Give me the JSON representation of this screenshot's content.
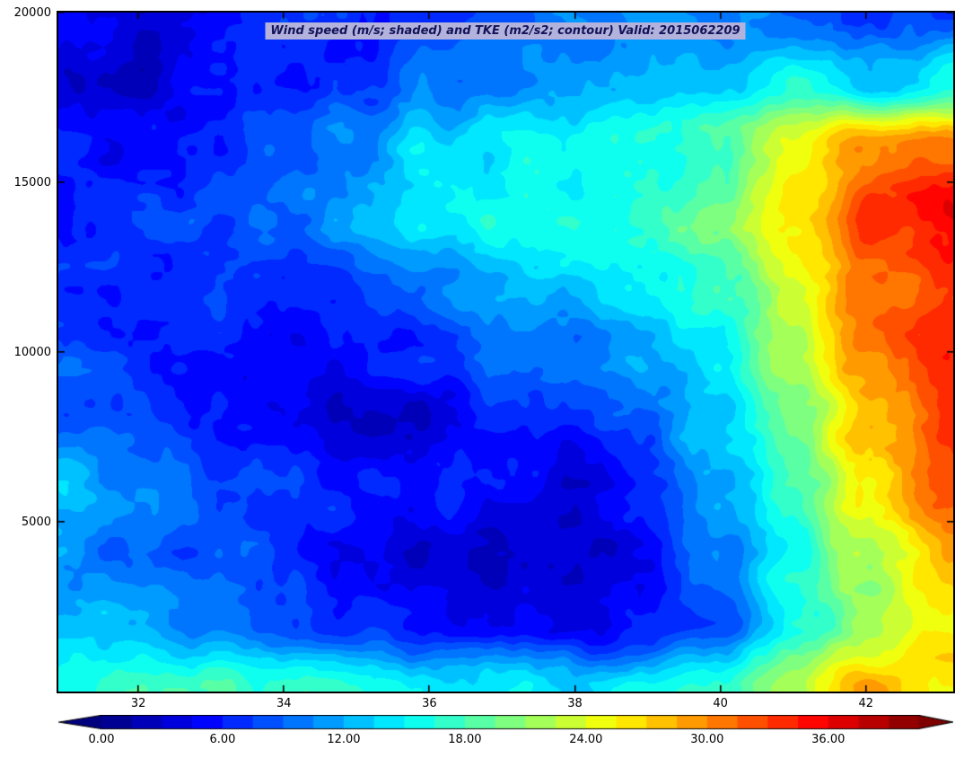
{
  "colors": {
    "title_bg": "#b2b2dc",
    "title_text": "#13135a",
    "axis": "#000000",
    "background": "#ffffff"
  },
  "colorbar": {
    "tick_labels": [
      "0.00",
      "6.00",
      "12.00",
      "18.00",
      "24.00",
      "30.00",
      "36.00"
    ],
    "tick_values": [
      0,
      6,
      12,
      18,
      24,
      30,
      36
    ],
    "vmin": 0,
    "vmax": 40.5
  },
  "chart_data": {
    "type": "heatmap",
    "title": "Wind speed (m/s; shaded) and TKE (m2/s2; contour) Valid: 2015062209",
    "xlabel": "",
    "ylabel": "",
    "units": "m/s",
    "colormap": "jet",
    "level_step": 1.5,
    "xlim": [
      30.9,
      43.2
    ],
    "ylim": [
      0,
      20000
    ],
    "x_ticks": [
      32,
      34,
      36,
      38,
      40,
      42
    ],
    "x_tick_labels": [
      "32",
      "34",
      "36",
      "38",
      "40",
      "42"
    ],
    "y_ticks": [
      5000,
      10000,
      15000,
      20000
    ],
    "y_tick_labels": [
      "5000",
      "10000",
      "15000",
      "20000"
    ],
    "x": [
      30.9,
      32,
      33,
      34,
      35,
      36,
      37,
      38,
      39,
      40,
      41,
      42,
      43.2
    ],
    "y": [
      0,
      2000,
      4000,
      6000,
      8000,
      10000,
      12000,
      14000,
      16000,
      18000,
      20000
    ],
    "values": [
      [
        15,
        17,
        18,
        17,
        16,
        15,
        15,
        14,
        15,
        17,
        22,
        28,
        26
      ],
      [
        13,
        12,
        10,
        8,
        7,
        6,
        5,
        4,
        6,
        9,
        15,
        21,
        26
      ],
      [
        11,
        9,
        8,
        7,
        5,
        4,
        3,
        3,
        5,
        10,
        16,
        22,
        28
      ],
      [
        13,
        10,
        8,
        7,
        6,
        6,
        5,
        4,
        6,
        11,
        18,
        26,
        32
      ],
      [
        9,
        8,
        6,
        4,
        3,
        4,
        6,
        7,
        9,
        13,
        20,
        28,
        34
      ],
      [
        8,
        7,
        6,
        5,
        5,
        7,
        9,
        10,
        12,
        15,
        22,
        30,
        34
      ],
      [
        7,
        6,
        7,
        6,
        8,
        10,
        12,
        13,
        14,
        17,
        24,
        31,
        33
      ],
      [
        6,
        7,
        8,
        9,
        12,
        14,
        16,
        16,
        17,
        20,
        26,
        33,
        36
      ],
      [
        6,
        5,
        7,
        8,
        11,
        14,
        15,
        15,
        16,
        18,
        24,
        30,
        32
      ],
      [
        4,
        3,
        5,
        6,
        7,
        9,
        10,
        11,
        12,
        13,
        16,
        13,
        15
      ],
      [
        6,
        4,
        5,
        6,
        7,
        7,
        8,
        10,
        11,
        10,
        9,
        7,
        8
      ]
    ]
  }
}
